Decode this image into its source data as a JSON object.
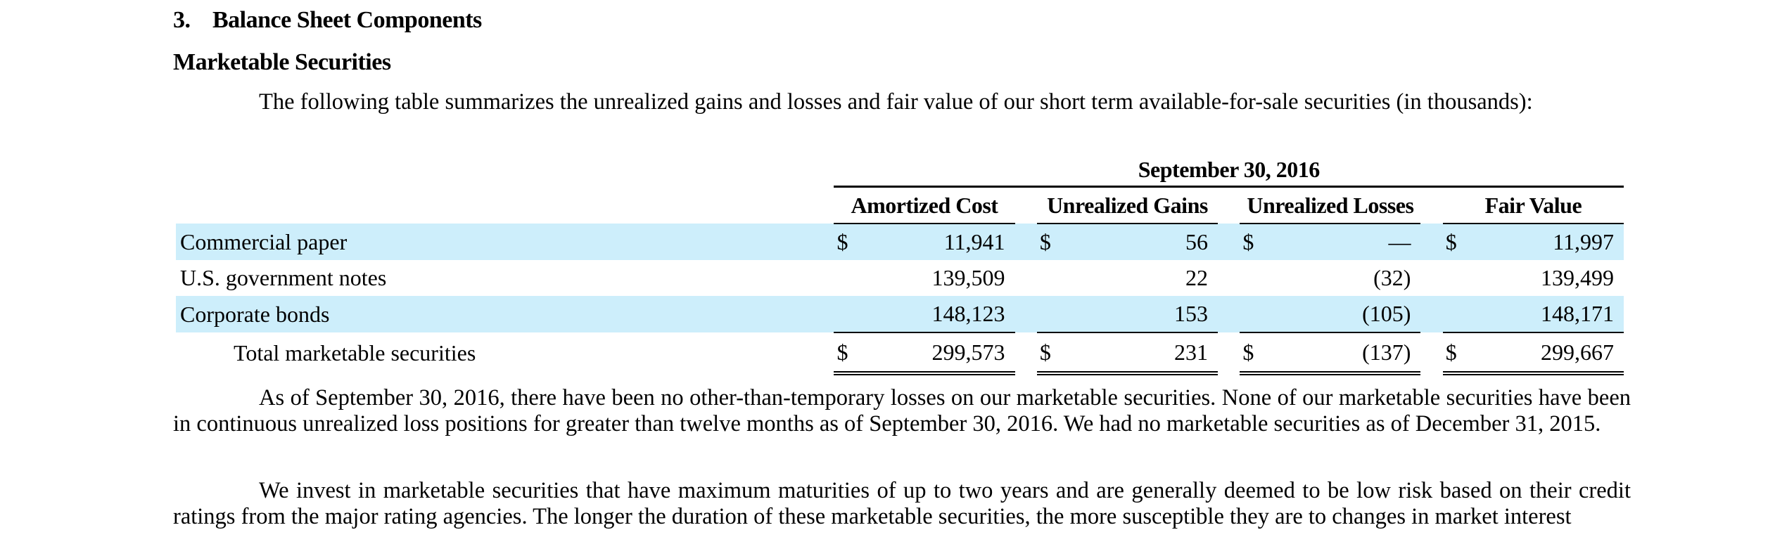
{
  "section": {
    "number": "3.",
    "title": "Balance Sheet Components"
  },
  "subsection": {
    "title": "Marketable Securities"
  },
  "intro": "The following table summarizes the unrealized gains and losses and fair value of our short term available-for-sale securities (in thousands):",
  "table": {
    "period": "September 30, 2016",
    "columns": [
      "Amortized Cost",
      "Unrealized Gains",
      "Unrealized Losses",
      "Fair Value"
    ],
    "rows": [
      {
        "label": "Commercial paper",
        "currency": [
          "$",
          "$",
          "$",
          "$"
        ],
        "values": [
          "11,941",
          "56",
          "—",
          "11,997"
        ]
      },
      {
        "label": "U.S. government notes",
        "currency": [
          "",
          "",
          "",
          ""
        ],
        "values": [
          "139,509",
          "22",
          "(32)",
          "139,499"
        ]
      },
      {
        "label": "Corporate bonds",
        "currency": [
          "",
          "",
          "",
          ""
        ],
        "values": [
          "148,123",
          "153",
          "(105)",
          "148,171"
        ]
      }
    ],
    "total": {
      "label": "Total marketable securities",
      "currency": [
        "$",
        "$",
        "$",
        "$"
      ],
      "values": [
        "299,573",
        "231",
        "(137)",
        "299,667"
      ]
    }
  },
  "paragraphs": [
    "As of September 30, 2016, there have been no other-than-temporary losses on our marketable securities. None of our marketable securities have been in continuous unrealized loss positions for greater than twelve months as of September 30, 2016. We had no marketable securities as of December 31, 2015.",
    "We invest in marketable securities that have maximum maturities of up to two years and are generally deemed to be low risk based on their credit ratings from the major rating agencies. The longer the duration of these marketable securities, the more susceptible they are to changes in market interest"
  ]
}
